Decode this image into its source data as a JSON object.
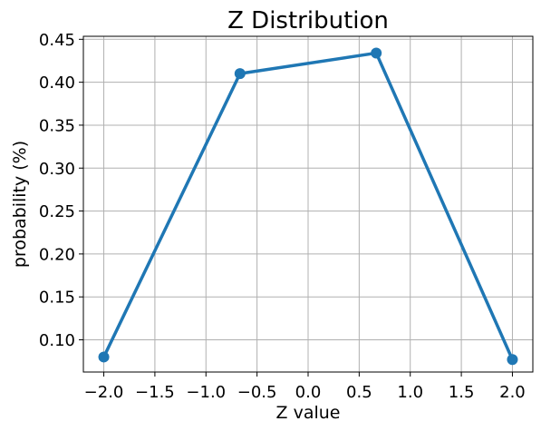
{
  "chart_data": {
    "type": "line",
    "title": "Z Distribution",
    "xlabel": "Z value",
    "ylabel": "probability (%)",
    "x": [
      -2.0,
      -0.667,
      0.667,
      2.0
    ],
    "series": [
      {
        "values": [
          0.08,
          0.41,
          0.434,
          0.077
        ],
        "color": "#1f77b4"
      }
    ],
    "xlim": [
      -2.2,
      2.2
    ],
    "ylim": [
      0.0625,
      0.4535
    ],
    "xticks": [
      "−2.0",
      "−1.5",
      "−1.0",
      "−0.5",
      "0.0",
      "0.5",
      "1.0",
      "1.5",
      "2.0"
    ],
    "xtick_values": [
      -2.0,
      -1.5,
      -1.0,
      -0.5,
      0.0,
      0.5,
      1.0,
      1.5,
      2.0
    ],
    "yticks": [
      "0.10",
      "0.15",
      "0.20",
      "0.25",
      "0.30",
      "0.35",
      "0.40",
      "0.45"
    ],
    "ytick_values": [
      0.1,
      0.15,
      0.2,
      0.25,
      0.3,
      0.35,
      0.4,
      0.45
    ],
    "grid": true,
    "marker": "circle"
  }
}
